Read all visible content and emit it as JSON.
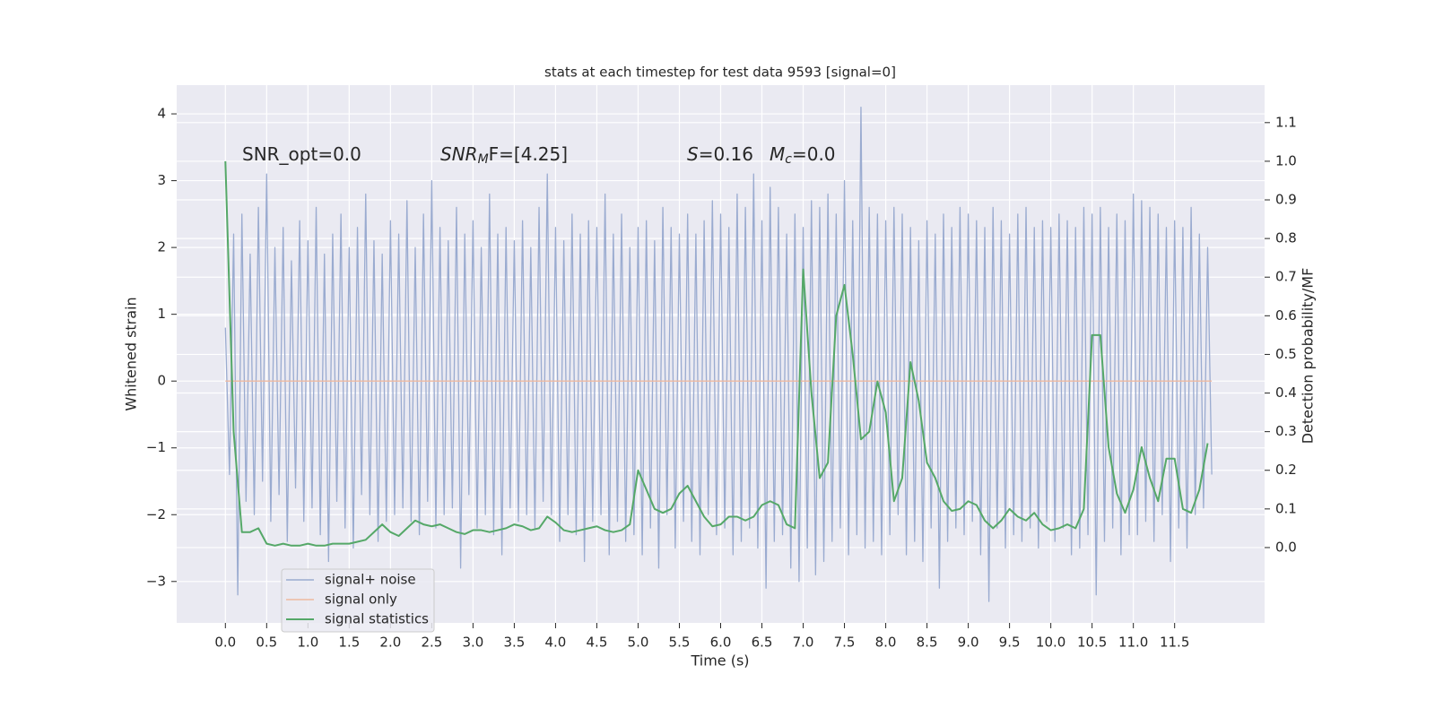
{
  "chart_data": {
    "type": "line",
    "title": "stats at each timestep for test data 9593 [signal=0]",
    "xlabel": "Time (s)",
    "ylabel": "Whitened strain",
    "y2label": "Detection probability/MF",
    "xlim": [
      -0.59,
      12.59
    ],
    "ylim": [
      -3.62,
      4.43
    ],
    "y2lim": [
      -0.195,
      1.197
    ],
    "grid": true,
    "legend": "lower left",
    "xticks": [
      {
        "value": 0,
        "label": "0.0"
      },
      0.5,
      {
        "value": 1,
        "label": "1.0"
      },
      1.5,
      {
        "value": 2,
        "label": "2.0"
      },
      2.5,
      {
        "value": 3,
        "label": "3.0"
      },
      3.5,
      {
        "value": 4,
        "label": "4.0"
      },
      4.5,
      {
        "value": 5,
        "label": "5.0"
      },
      5.5,
      {
        "value": 6,
        "label": "6.0"
      },
      6.5,
      {
        "value": 7,
        "label": "7.0"
      },
      7.5,
      {
        "value": 8,
        "label": "8.0"
      },
      8.5,
      {
        "value": 9,
        "label": "9.0"
      },
      9.5,
      {
        "value": 10,
        "label": "10.0"
      },
      10.5,
      {
        "value": 11,
        "label": "11.0"
      },
      11.5
    ],
    "yticks": [
      {
        "value": -3,
        "label": "−3"
      },
      {
        "value": -2,
        "label": "−2"
      },
      {
        "value": -1,
        "label": "−1"
      },
      0,
      1,
      2,
      3,
      4
    ],
    "y2ticks": [
      {
        "value": 0,
        "label": "0.0"
      },
      0.1,
      0.2,
      0.3,
      0.4,
      0.5,
      0.6,
      0.7,
      0.8,
      0.9,
      {
        "value": 1,
        "label": "1.0"
      },
      1.1
    ],
    "annotations": [
      {
        "text": "SNR_opt=0.0"
      },
      {
        "base": "SNR",
        "sub": "M",
        "rest": "F=[4.25]"
      },
      {
        "base": "S",
        "rest": "=0.16"
      },
      {
        "base": "M",
        "sub": "c",
        "rest": "=0.0"
      }
    ],
    "series": [
      {
        "name": "signal+ noise",
        "color": "#9aabd0",
        "x": [
          0,
          0.05,
          0.1,
          0.15,
          0.2,
          0.25,
          0.3,
          0.35,
          0.4,
          0.45,
          0.5,
          0.55,
          0.6,
          0.65,
          0.7,
          0.75,
          0.8,
          0.85,
          0.9,
          0.95,
          1,
          1.05,
          1.1,
          1.15,
          1.2,
          1.25,
          1.3,
          1.35,
          1.4,
          1.45,
          1.5,
          1.55,
          1.6,
          1.65,
          1.7,
          1.75,
          1.8,
          1.85,
          1.9,
          1.95,
          2,
          2.05,
          2.1,
          2.15,
          2.2,
          2.25,
          2.3,
          2.35,
          2.4,
          2.45,
          2.5,
          2.55,
          2.6,
          2.65,
          2.7,
          2.75,
          2.8,
          2.85,
          2.9,
          2.95,
          3,
          3.05,
          3.1,
          3.15,
          3.2,
          3.25,
          3.3,
          3.35,
          3.4,
          3.45,
          3.5,
          3.55,
          3.6,
          3.65,
          3.7,
          3.75,
          3.8,
          3.85,
          3.9,
          3.95,
          4,
          4.05,
          4.1,
          4.15,
          4.2,
          4.25,
          4.3,
          4.35,
          4.4,
          4.45,
          4.5,
          4.55,
          4.6,
          4.65,
          4.7,
          4.75,
          4.8,
          4.85,
          4.9,
          4.95,
          5,
          5.05,
          5.1,
          5.15,
          5.2,
          5.25,
          5.3,
          5.35,
          5.4,
          5.45,
          5.5,
          5.55,
          5.6,
          5.65,
          5.7,
          5.75,
          5.8,
          5.85,
          5.9,
          5.95,
          6,
          6.05,
          6.1,
          6.15,
          6.2,
          6.25,
          6.3,
          6.35,
          6.4,
          6.45,
          6.5,
          6.55,
          6.6,
          6.65,
          6.7,
          6.75,
          6.8,
          6.85,
          6.9,
          6.95,
          7,
          7.05,
          7.1,
          7.15,
          7.2,
          7.25,
          7.3,
          7.35,
          7.4,
          7.45,
          7.5,
          7.55,
          7.6,
          7.65,
          7.7,
          7.75,
          7.8,
          7.85,
          7.9,
          7.95,
          8,
          8.05,
          8.1,
          8.15,
          8.2,
          8.25,
          8.3,
          8.35,
          8.4,
          8.45,
          8.5,
          8.55,
          8.6,
          8.65,
          8.7,
          8.75,
          8.8,
          8.85,
          8.9,
          8.95,
          9,
          9.05,
          9.1,
          9.15,
          9.2,
          9.25,
          9.3,
          9.35,
          9.4,
          9.45,
          9.5,
          9.55,
          9.6,
          9.65,
          9.7,
          9.75,
          9.8,
          9.85,
          9.9,
          9.95,
          10,
          10.05,
          10.1,
          10.15,
          10.2,
          10.25,
          10.3,
          10.35,
          10.4,
          10.45,
          10.5,
          10.55,
          10.6,
          10.65,
          10.7,
          10.75,
          10.8,
          10.85,
          10.9,
          10.95,
          11,
          11.05,
          11.1,
          11.15,
          11.2,
          11.25,
          11.3,
          11.35,
          11.4,
          11.45,
          11.5,
          11.55,
          11.6,
          11.65,
          11.7,
          11.75,
          11.8,
          11.85,
          11.9,
          11.95
        ],
        "values": [
          0.8,
          -1.4,
          2.2,
          -3.2,
          2.5,
          -1.8,
          1.9,
          -2.0,
          2.6,
          -1.5,
          3.1,
          -2.1,
          2.0,
          -1.7,
          2.3,
          -2.4,
          1.8,
          -1.6,
          2.4,
          -2.1,
          2.1,
          -1.9,
          2.6,
          -2.3,
          1.9,
          -2.7,
          2.2,
          -1.8,
          2.5,
          -2.2,
          2.0,
          -2.5,
          2.3,
          -1.7,
          2.8,
          -2.0,
          2.1,
          -2.4,
          1.9,
          -2.1,
          2.4,
          -2.0,
          2.2,
          -1.9,
          2.7,
          -2.1,
          2.0,
          -2.3,
          2.5,
          -1.8,
          3.0,
          -2.2,
          2.3,
          -2.0,
          2.1,
          -1.9,
          2.6,
          -2.8,
          2.2,
          -1.7,
          2.4,
          -2.2,
          2.0,
          -2.0,
          2.8,
          -2.3,
          2.2,
          -2.6,
          2.3,
          -1.9,
          2.1,
          -2.1,
          2.4,
          -2.0,
          2.0,
          -2.2,
          2.6,
          -1.8,
          3.1,
          -2.0,
          2.3,
          -2.4,
          2.1,
          -2.0,
          2.5,
          -2.3,
          2.2,
          -2.7,
          2.4,
          -2.1,
          2.3,
          -2.0,
          2.8,
          -2.6,
          2.2,
          -2.1,
          2.5,
          -2.4,
          2.0,
          -2.3,
          2.3,
          -2.6,
          2.4,
          -2.2,
          2.1,
          -2.8,
          2.6,
          -2.0,
          2.3,
          -2.5,
          2.2,
          -2.1,
          2.5,
          -2.4,
          2.2,
          -2.6,
          2.4,
          -2.0,
          2.7,
          -2.3,
          2.5,
          -2.2,
          2.3,
          -2.6,
          2.8,
          -2.4,
          2.6,
          -2.2,
          3.1,
          -2.5,
          2.4,
          -3.1,
          2.9,
          -2.4,
          2.6,
          -2.3,
          2.2,
          -2.8,
          2.5,
          -3.0,
          2.3,
          -2.5,
          2.7,
          -2.9,
          2.6,
          -2.7,
          2.8,
          -2.4,
          2.5,
          -2.2,
          3.0,
          -2.6,
          2.4,
          -2.3,
          4.1,
          -2.5,
          2.6,
          -2.4,
          2.5,
          -2.6,
          2.4,
          -2.3,
          2.6,
          -2.0,
          2.5,
          -2.6,
          2.3,
          -2.4,
          2.1,
          -2.7,
          2.4,
          -2.2,
          2.2,
          -3.1,
          2.5,
          -2.4,
          2.3,
          -2.2,
          2.6,
          -2.3,
          2.5,
          -2.1,
          2.4,
          -2.6,
          2.3,
          -3.3,
          2.6,
          -2.2,
          2.4,
          -2.5,
          2.2,
          -2.3,
          2.5,
          -2.4,
          2.6,
          -2.2,
          2.3,
          -2.5,
          2.4,
          -2.1,
          2.3,
          -2.4,
          2.5,
          -2.2,
          2.4,
          -2.6,
          2.3,
          -2.5,
          2.6,
          -2.3,
          2.5,
          -3.2,
          2.6,
          -2.4,
          2.3,
          -2.2,
          2.5,
          -2.6,
          2.4,
          -2.3,
          2.8,
          -2.3,
          2.7,
          -2.1,
          2.6,
          -2.4,
          2.5,
          -2.0,
          2.3,
          -2.7,
          2.4,
          -2.2,
          2.3,
          -2.5,
          2.6,
          -2.0,
          2.2,
          -1.9,
          2.0,
          -1.4
        ]
      },
      {
        "name": "signal only",
        "color": "#eeb9a0",
        "x": [
          0,
          11.95
        ],
        "values": [
          0,
          0
        ]
      },
      {
        "name": "signal statistics",
        "color": "#55a868",
        "axis": "y2",
        "x": [
          0,
          0.1,
          0.2,
          0.3,
          0.4,
          0.5,
          0.6,
          0.7,
          0.8,
          0.9,
          1,
          1.1,
          1.2,
          1.3,
          1.4,
          1.5,
          1.6,
          1.7,
          1.8,
          1.9,
          2,
          2.1,
          2.2,
          2.3,
          2.4,
          2.5,
          2.6,
          2.7,
          2.8,
          2.9,
          3,
          3.1,
          3.2,
          3.3,
          3.4,
          3.5,
          3.6,
          3.7,
          3.8,
          3.9,
          4,
          4.1,
          4.2,
          4.3,
          4.4,
          4.5,
          4.6,
          4.7,
          4.8,
          4.9,
          5,
          5.1,
          5.2,
          5.3,
          5.4,
          5.5,
          5.6,
          5.7,
          5.8,
          5.9,
          6,
          6.1,
          6.2,
          6.3,
          6.4,
          6.5,
          6.6,
          6.7,
          6.8,
          6.9,
          7,
          7.1,
          7.2,
          7.3,
          7.4,
          7.5,
          7.6,
          7.7,
          7.8,
          7.9,
          8,
          8.1,
          8.2,
          8.3,
          8.4,
          8.5,
          8.6,
          8.7,
          8.8,
          8.9,
          9,
          9.1,
          9.2,
          9.3,
          9.4,
          9.5,
          9.6,
          9.7,
          9.8,
          9.9,
          10,
          10.1,
          10.2,
          10.3,
          10.4,
          10.5,
          10.6,
          10.7,
          10.8,
          10.9,
          11,
          11.1,
          11.2,
          11.3,
          11.4,
          11.5,
          11.6,
          11.7,
          11.8,
          11.9
        ],
        "values": [
          1.0,
          0.3,
          0.04,
          0.04,
          0.05,
          0.01,
          0.005,
          0.01,
          0.005,
          0.005,
          0.01,
          0.005,
          0.005,
          0.01,
          0.01,
          0.01,
          0.015,
          0.02,
          0.04,
          0.06,
          0.04,
          0.03,
          0.05,
          0.07,
          0.06,
          0.055,
          0.06,
          0.05,
          0.04,
          0.035,
          0.045,
          0.045,
          0.04,
          0.045,
          0.05,
          0.06,
          0.055,
          0.045,
          0.05,
          0.08,
          0.065,
          0.045,
          0.04,
          0.045,
          0.05,
          0.055,
          0.045,
          0.04,
          0.045,
          0.06,
          0.2,
          0.15,
          0.1,
          0.09,
          0.1,
          0.14,
          0.16,
          0.12,
          0.08,
          0.055,
          0.06,
          0.08,
          0.08,
          0.07,
          0.08,
          0.11,
          0.12,
          0.11,
          0.06,
          0.05,
          0.72,
          0.4,
          0.18,
          0.22,
          0.6,
          0.68,
          0.5,
          0.28,
          0.3,
          0.43,
          0.35,
          0.12,
          0.18,
          0.48,
          0.38,
          0.22,
          0.18,
          0.12,
          0.095,
          0.1,
          0.12,
          0.11,
          0.07,
          0.05,
          0.07,
          0.1,
          0.08,
          0.07,
          0.09,
          0.06,
          0.045,
          0.05,
          0.06,
          0.05,
          0.1,
          0.55,
          0.55,
          0.26,
          0.14,
          0.09,
          0.15,
          0.26,
          0.18,
          0.12,
          0.23,
          0.23,
          0.1,
          0.09,
          0.15,
          0.27
        ]
      }
    ]
  }
}
